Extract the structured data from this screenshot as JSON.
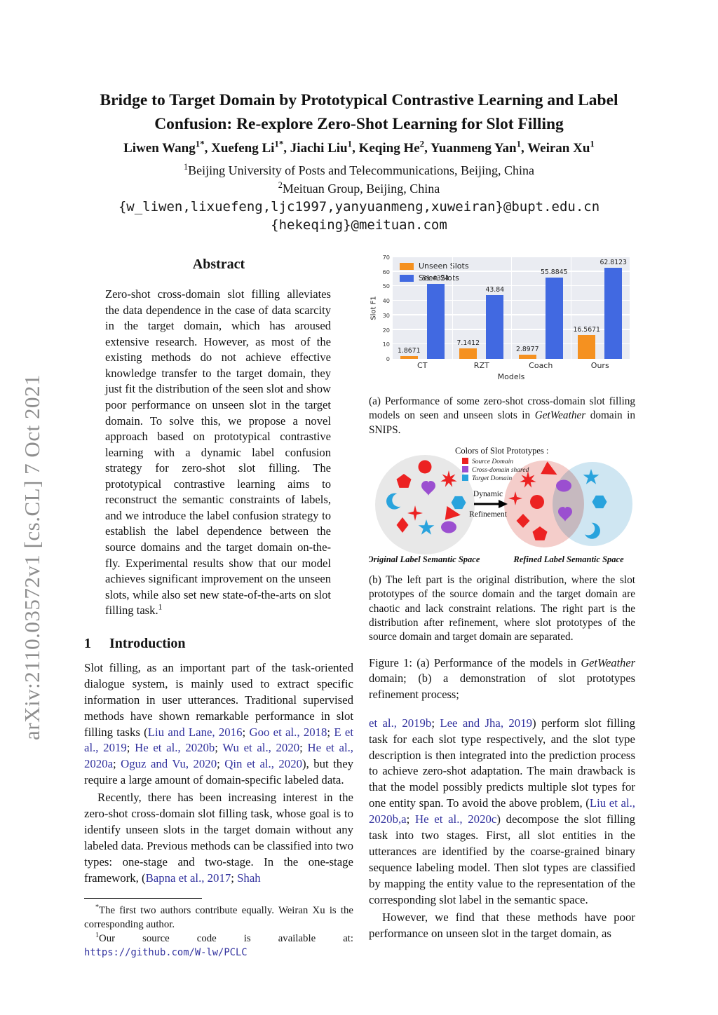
{
  "arxiv_watermark": "arXiv:2110.03572v1  [cs.CL]  7 Oct 2021",
  "header": {
    "title_line1": "Bridge to Target Domain by Prototypical Contrastive Learning and Label",
    "title_line2": "Confusion: Re-explore Zero-Shot Learning for Slot Filling",
    "authors_segments": [
      {
        "t": "Liwen Wang"
      },
      {
        "t": "1*",
        "sup": true
      },
      {
        "t": ", Xuefeng Li"
      },
      {
        "t": "1*",
        "sup": true
      },
      {
        "t": ", Jiachi Liu"
      },
      {
        "t": "1",
        "sup": true
      },
      {
        "t": ", Keqing He"
      },
      {
        "t": "2",
        "sup": true
      },
      {
        "t": ", Yuanmeng Yan"
      },
      {
        "t": "1",
        "sup": true
      },
      {
        "t": ", Weiran Xu"
      },
      {
        "t": "1",
        "sup": true
      }
    ],
    "affil1_segments": [
      {
        "t": "1",
        "sup": true
      },
      {
        "t": "Beijing University of Posts and Telecommunications, Beijing, China"
      }
    ],
    "affil2_segments": [
      {
        "t": "2",
        "sup": true
      },
      {
        "t": "Meituan Group, Beijing, China"
      }
    ],
    "email1": "{w_liwen,lixuefeng,ljc1997,yanyuanmeng,xuweiran}@bupt.edu.cn",
    "email2": "{hekeqing}@meituan.com"
  },
  "abstract": {
    "heading": "Abstract",
    "body_segments": [
      {
        "t": "Zero-shot cross-domain slot filling alleviates the data dependence in the case of data scarcity in the target domain, which has aroused extensive research. However, as most of the existing methods do not achieve effective knowledge transfer to the target domain, they just fit the distribution of the seen slot and show poor performance on unseen slot in the target domain. To solve this, we propose a novel approach based on prototypical contrastive learning with a dynamic label confusion strategy for zero-shot slot filling. The prototypical contrastive learning aims to reconstruct the semantic constraints of labels, and we introduce the label confusion strategy to establish the label dependence between the source domains and the target domain on-the-fly. Experimental results show that our model achieves significant improvement on the unseen slots, while also set new state-of-the-arts on slot filling task."
      },
      {
        "t": "1",
        "sup": true
      }
    ]
  },
  "introduction": {
    "number": "1",
    "title": "Introduction",
    "para1_segments": [
      {
        "t": "Slot filling, as an important part of the task-oriented dialogue system, is mainly used to extract specific information in user utterances.  Traditional supervised methods have shown remarkable performance in slot filling tasks ("
      },
      {
        "t": "Liu and Lane, 2016",
        "c": true
      },
      {
        "t": "; "
      },
      {
        "t": "Goo et al., 2018",
        "c": true
      },
      {
        "t": "; "
      },
      {
        "t": "E et al., 2019",
        "c": true
      },
      {
        "t": "; "
      },
      {
        "t": "He et al., 2020b",
        "c": true
      },
      {
        "t": "; "
      },
      {
        "t": "Wu et al., 2020",
        "c": true
      },
      {
        "t": "; "
      },
      {
        "t": "He et al., 2020a",
        "c": true
      },
      {
        "t": "; "
      },
      {
        "t": "Oguz and Vu, 2020",
        "c": true
      },
      {
        "t": "; "
      },
      {
        "t": "Qin et al., 2020",
        "c": true
      },
      {
        "t": "), but they require a large amount of domain-specific labeled data."
      }
    ],
    "para2_segments": [
      {
        "t": "Recently, there has been increasing interest in the zero-shot cross-domain slot filling task, whose goal is to identify unseen slots in the target domain without any labeled data. Previous methods can be classified into two types: one-stage and two-stage. In the one-stage framework, ("
      },
      {
        "t": "Bapna et al., 2017",
        "c": true
      },
      {
        "t": "; "
      },
      {
        "t": "Shah",
        "c": true
      }
    ]
  },
  "footnotes": {
    "fn1_segments": [
      {
        "t": "*",
        "sup": true
      },
      {
        "t": "The first two authors contribute equally.  Weiran Xu is the corresponding author."
      }
    ],
    "fn2_segments": [
      {
        "t": "1",
        "sup": true
      },
      {
        "t": "Our source code is available at: "
      },
      {
        "t": "https://github.com/W-lw/PCLC",
        "c": true,
        "mono": true
      }
    ]
  },
  "chart_data": {
    "type": "bar",
    "categories": [
      "CT",
      "RZT",
      "Coach",
      "Ours"
    ],
    "series": [
      {
        "name": "Unseen Slots",
        "color": "#f59120",
        "values": [
          1.8671,
          7.1412,
          2.8977,
          16.5671
        ]
      },
      {
        "name": "Seen Slots",
        "color": "#4169e1",
        "values": [
          51.4324,
          43.84,
          55.8845,
          62.8123
        ]
      }
    ],
    "xlabel": "Models",
    "ylabel": "Slot F1",
    "ylim": [
      0,
      70
    ],
    "yticks": [
      0,
      10,
      20,
      30,
      40,
      50,
      60,
      70
    ],
    "legend_position": "upper left",
    "grid": true,
    "plot_background": "#eaecf2"
  },
  "figure1": {
    "caption_a_segments": [
      {
        "t": "(a)  Performance of some zero-shot cross-domain slot filling models on seen and unseen slots in "
      },
      {
        "t": "GetWeather",
        "i": true
      },
      {
        "t": " domain in SNIPS."
      }
    ],
    "caption_b": "(b) The left part is the original distribution, where the slot prototypes of the source domain and the target domain are chaotic and lack constraint relations.  The right part is the distribution after refinement, where slot prototypes of the source domain and target domain are separated.",
    "caption_segments": [
      {
        "t": "Figure 1: (a) Performance of the models in "
      },
      {
        "t": "GetWeather",
        "i": true
      },
      {
        "t": " domain; (b) a demonstration of slot prototypes refinement process;"
      }
    ]
  },
  "figure_b": {
    "legend_title": "Colors of Slot Prototypes :",
    "legend": [
      {
        "label": "Source Domain",
        "color": "#ec2222"
      },
      {
        "label": "Cross-domain shared",
        "color": "#9b4fd0"
      },
      {
        "label": "Target Domain",
        "color": "#29a3dd"
      }
    ],
    "arrow_top": "Dynamic",
    "arrow_bottom": "Refinement",
    "left_label": "Original Label Semantic Space",
    "right_label": "Refined Label Semantic Space"
  },
  "right_column": {
    "para1_segments": [
      {
        "t": "et al., 2019b",
        "c": true
      },
      {
        "t": "; "
      },
      {
        "t": "Lee and Jha, 2019",
        "c": true
      },
      {
        "t": ") perform slot filling task for each slot type respectively, and the slot type description is then integrated into the prediction process to achieve zero-shot adaptation.  The main drawback is that the model possibly predicts multiple slot types for one entity span.  To avoid the above problem, ("
      },
      {
        "t": "Liu et al., 2020b,a",
        "c": true
      },
      {
        "t": "; "
      },
      {
        "t": "He et al., 2020c",
        "c": true
      },
      {
        "t": ") decompose the slot filling task into two stages.  First, all slot entities in the utterances are identified by the coarse-grained binary sequence labeling model.  Then slot types are classified by mapping the entity value to the representation of the corresponding slot label in the semantic space."
      }
    ],
    "para2_segments": [
      {
        "t": "However, we find that these methods have poor performance on unseen slot in the target domain, as"
      }
    ]
  },
  "colors": {
    "citation_link": "#32329e",
    "watermark_gray": "#8e8e8e",
    "bar_unseen_orange": "#f59120",
    "bar_seen_blue": "#4169e1",
    "proto_source_red": "#ec2222",
    "proto_shared_purple": "#9b4fd0",
    "proto_target_blue": "#29a3dd"
  }
}
